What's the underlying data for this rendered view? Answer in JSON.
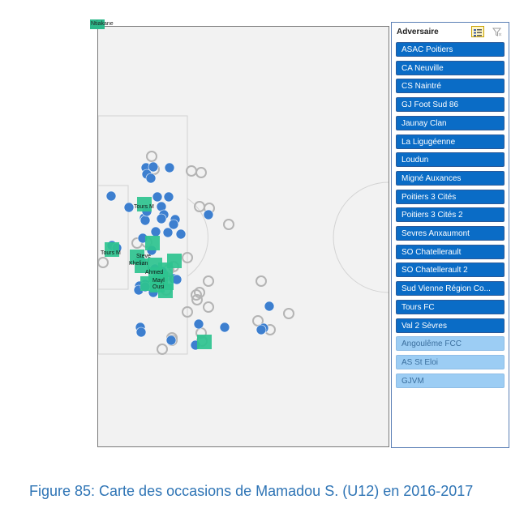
{
  "pitch_tags": {
    "corner": "Ntiakane",
    "labels": [
      "Tours M",
      "Tours M",
      "Steve",
      "Khelian",
      "Ahmed",
      "Mayl",
      "Ousi"
    ]
  },
  "slicer": {
    "title": "Adversaire",
    "items": [
      {
        "label": "ASAC Poitiers",
        "selected": true
      },
      {
        "label": "CA Neuville",
        "selected": true
      },
      {
        "label": "CS Naintré",
        "selected": true
      },
      {
        "label": "GJ Foot Sud 86",
        "selected": true
      },
      {
        "label": "Jaunay Clan",
        "selected": true
      },
      {
        "label": "La Ligugéenne",
        "selected": true
      },
      {
        "label": "Loudun",
        "selected": true
      },
      {
        "label": "Migné Auxances",
        "selected": true
      },
      {
        "label": "Poitiers 3 Cités",
        "selected": true
      },
      {
        "label": "Poitiers 3 Cités 2",
        "selected": true
      },
      {
        "label": "Sevres Anxaumont",
        "selected": true
      },
      {
        "label": "SO Chatellerault",
        "selected": true
      },
      {
        "label": "SO Chatellerault 2",
        "selected": true
      },
      {
        "label": "Sud Vienne Région Co...",
        "selected": true
      },
      {
        "label": "Tours FC",
        "selected": true
      },
      {
        "label": "Val 2 Sèvres",
        "selected": true
      },
      {
        "label": "Angoulême FCC",
        "selected": false
      },
      {
        "label": "AS St Eloi",
        "selected": false
      },
      {
        "label": "GJVM",
        "selected": false
      }
    ]
  },
  "caption": "Figure 85: Carte des occasions de Mamadou S. (U12) en 2016-2017",
  "colors": {
    "filled_marker": "#3d7fcf",
    "hollow_marker": "#b4b4b4",
    "goal_square": "#2ec38f",
    "pitch": "#f2f2f2",
    "slicer_selected": "#0a6cc6",
    "slicer_unselected": "#9ccdf4",
    "caption": "#2e74b5"
  }
}
